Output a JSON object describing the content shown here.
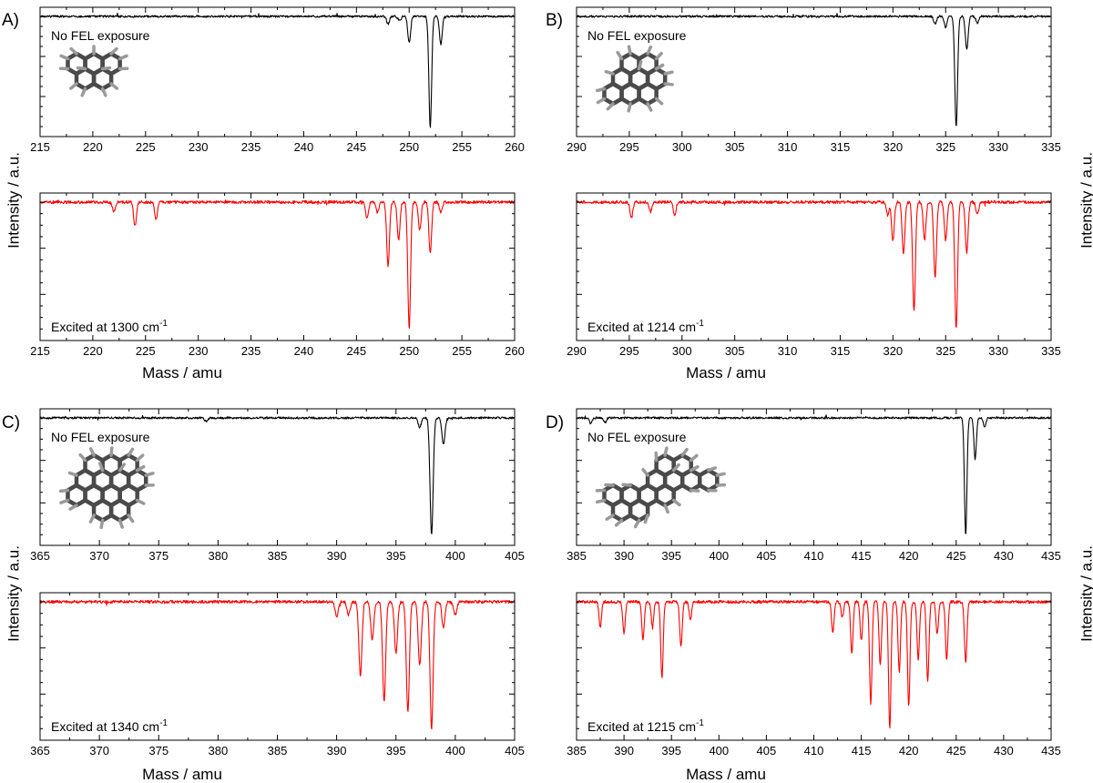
{
  "chart_data": [
    {
      "type": "line",
      "panel": "A)",
      "xlabel": "Mass / amu",
      "ylabel": "Intensity / a.u.",
      "xlim": [
        215,
        260
      ],
      "xticks": [
        215,
        220,
        225,
        230,
        235,
        240,
        245,
        250,
        255,
        260
      ],
      "subplots": [
        {
          "label": "No FEL exposure",
          "color": "#000000",
          "series": [
            {
              "name": "No FEL exposure",
              "peaks": [
                [
                  248,
                  0.07
                ],
                [
                  250,
                  0.24
                ],
                [
                  252,
                  1.0
                ],
                [
                  253,
                  0.25
                ],
                [
                  249.1,
                  0.04
                ]
              ]
            }
          ]
        },
        {
          "label": "Excited at 1300 cm",
          "label_sup": "-1",
          "color": "#ff0000",
          "series": [
            {
              "name": "Excited at 1300 cm-1",
              "peaks": [
                [
                  222,
                  0.08
                ],
                [
                  224,
                  0.19
                ],
                [
                  226,
                  0.14
                ],
                [
                  246,
                  0.13
                ],
                [
                  247,
                  0.08
                ],
                [
                  248,
                  0.5
                ],
                [
                  249,
                  0.3
                ],
                [
                  250,
                  1.0
                ],
                [
                  251,
                  0.22
                ],
                [
                  252,
                  0.4
                ],
                [
                  253,
                  0.08
                ]
              ]
            }
          ]
        }
      ]
    },
    {
      "type": "line",
      "panel": "B)",
      "xlabel": "Mass / amu",
      "ylabel": "Intensity / a.u.",
      "xlim": [
        290,
        335
      ],
      "xticks": [
        290,
        295,
        300,
        305,
        310,
        315,
        320,
        325,
        330,
        335
      ],
      "subplots": [
        {
          "label": "No FEL exposure",
          "color": "#000000",
          "series": [
            {
              "name": "No FEL exposure",
              "peaks": [
                [
                  324,
                  0.07
                ],
                [
                  325,
                  0.1
                ],
                [
                  326,
                  1.0
                ],
                [
                  327,
                  0.3
                ],
                [
                  328,
                  0.06
                ]
              ]
            }
          ]
        },
        {
          "label": "Excited at 1214 cm",
          "label_sup": "-1",
          "color": "#ff0000",
          "series": [
            {
              "name": "Excited at 1214 cm-1",
              "peaks": [
                [
                  295.2,
                  0.12
                ],
                [
                  297,
                  0.08
                ],
                [
                  299.3,
                  0.1
                ],
                [
                  319.5,
                  0.1
                ],
                [
                  320,
                  0.3
                ],
                [
                  321,
                  0.4
                ],
                [
                  322,
                  0.86
                ],
                [
                  323,
                  0.3
                ],
                [
                  324,
                  0.6
                ],
                [
                  325,
                  0.3
                ],
                [
                  326,
                  1.0
                ],
                [
                  327,
                  0.4
                ],
                [
                  328,
                  0.1
                ]
              ]
            }
          ]
        }
      ]
    },
    {
      "type": "line",
      "panel": "C)",
      "xlabel": "Mass / amu",
      "ylabel": "Intensity / a.u.",
      "xlim": [
        365,
        405
      ],
      "xticks": [
        365,
        370,
        375,
        380,
        385,
        390,
        395,
        400,
        405
      ],
      "subplots": [
        {
          "label": "No FEL exposure",
          "color": "#000000",
          "series": [
            {
              "name": "No FEL exposure",
              "peaks": [
                [
                  397,
                  0.08
                ],
                [
                  398,
                  1.0
                ],
                [
                  399,
                  0.22
                ],
                [
                  379,
                  0.03
                ]
              ]
            }
          ]
        },
        {
          "label": "Excited at 1340 cm",
          "label_sup": "-1",
          "color": "#ff0000",
          "series": [
            {
              "name": "Excited at 1340 cm-1",
              "peaks": [
                [
                  390,
                  0.12
                ],
                [
                  391,
                  0.1
                ],
                [
                  392,
                  0.58
                ],
                [
                  393,
                  0.3
                ],
                [
                  394,
                  0.78
                ],
                [
                  395,
                  0.4
                ],
                [
                  396,
                  0.86
                ],
                [
                  397,
                  0.5
                ],
                [
                  398,
                  1.0
                ],
                [
                  399,
                  0.2
                ],
                [
                  400,
                  0.1
                ]
              ]
            }
          ]
        }
      ]
    },
    {
      "type": "line",
      "panel": "D)",
      "xlabel": "Mass / amu",
      "ylabel": "Intensity / a.u.",
      "xlim": [
        385,
        435
      ],
      "xticks": [
        385,
        390,
        395,
        400,
        405,
        410,
        415,
        420,
        425,
        430,
        435
      ],
      "subplots": [
        {
          "label": "No FEL exposure",
          "color": "#000000",
          "series": [
            {
              "name": "No FEL exposure",
              "peaks": [
                [
                  386.5,
                  0.05
                ],
                [
                  388,
                  0.04
                ],
                [
                  426,
                  1.0
                ],
                [
                  427,
                  0.35
                ],
                [
                  428,
                  0.08
                ]
              ]
            }
          ]
        },
        {
          "label": "Excited at 1215 cm",
          "label_sup": "-1",
          "color": "#ff0000",
          "series": [
            {
              "name": "Excited at 1215 cm-1",
              "peaks": [
                [
                  387.5,
                  0.2
                ],
                [
                  390,
                  0.25
                ],
                [
                  392,
                  0.3
                ],
                [
                  393,
                  0.2
                ],
                [
                  394,
                  0.6
                ],
                [
                  396,
                  0.35
                ],
                [
                  397,
                  0.15
                ],
                [
                  412,
                  0.25
                ],
                [
                  413,
                  0.12
                ],
                [
                  414,
                  0.4
                ],
                [
                  415,
                  0.3
                ],
                [
                  416,
                  0.8
                ],
                [
                  417,
                  0.5
                ],
                [
                  418,
                  1.0
                ],
                [
                  419,
                  0.55
                ],
                [
                  420,
                  0.82
                ],
                [
                  421,
                  0.45
                ],
                [
                  422,
                  0.63
                ],
                [
                  423,
                  0.25
                ],
                [
                  424,
                  0.45
                ],
                [
                  426,
                  0.48
                ]
              ]
            }
          ]
        }
      ]
    }
  ]
}
